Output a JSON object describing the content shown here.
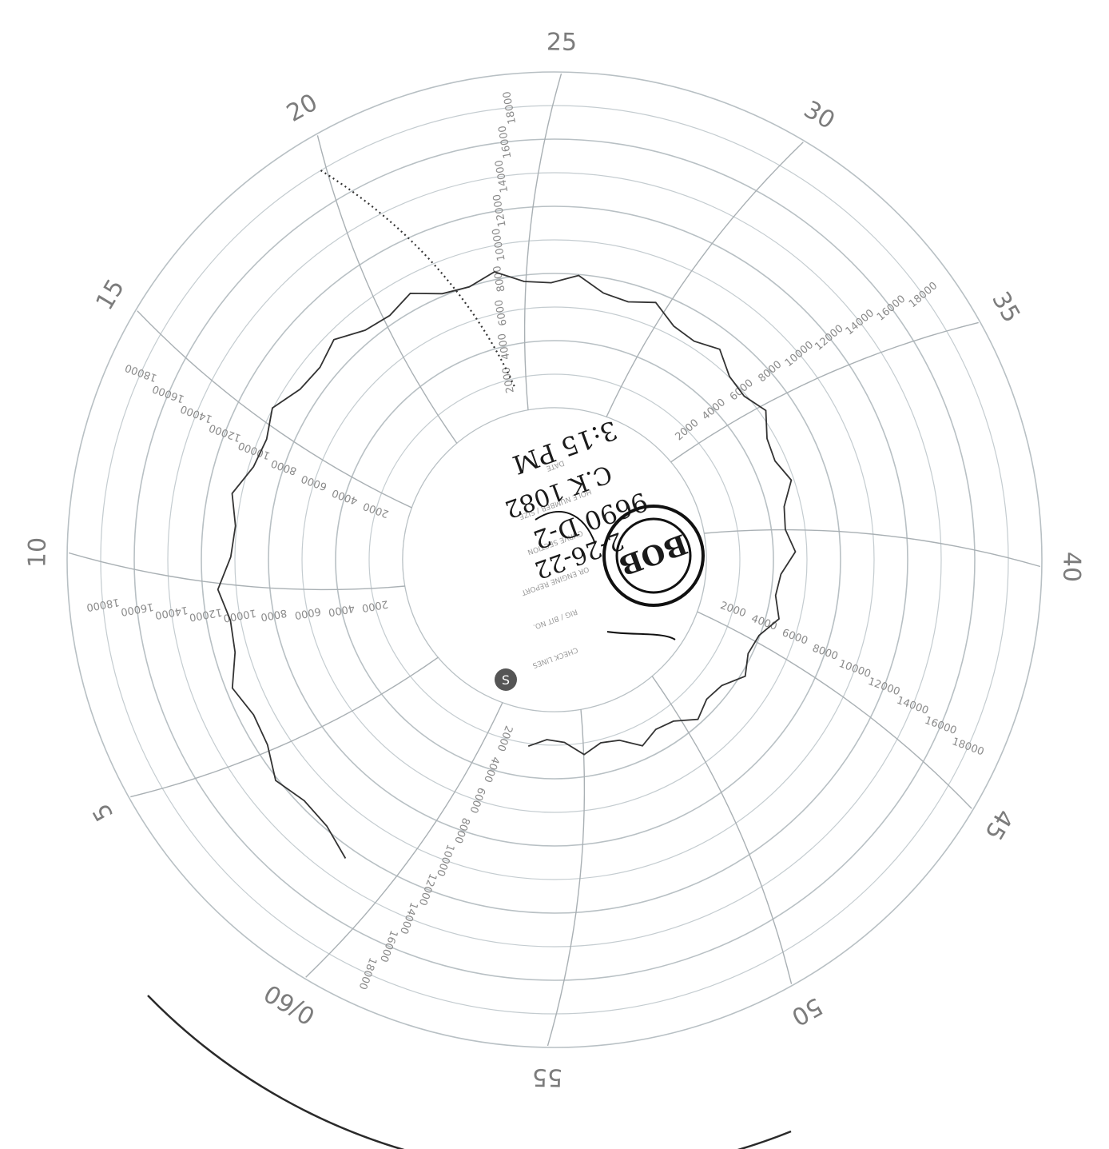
{
  "chart_data": {
    "type": "polar recorder chart",
    "minute_marks": [
      "0/60",
      "5",
      "10",
      "15",
      "20",
      "25",
      "30",
      "35",
      "40",
      "45",
      "50",
      "55"
    ],
    "depth_scale": [
      2000,
      4000,
      6000,
      8000,
      10000,
      12000,
      14000,
      16000,
      18000
    ],
    "logo_letter": "S",
    "center_print_lines": [
      "DATE",
      "HOLE NUMBER / SIZE",
      "CURVE SECTION",
      "OR ENGINE REPORT",
      "RIG / BIT NO.",
      "CHECK LINES"
    ],
    "handwriting": {
      "line1": "2-26-22",
      "line2": "9690 D-2",
      "line3": "C.K 1082",
      "line4": "3:15 PM",
      "circled": "BOB"
    },
    "traces": [
      {
        "name": "",
        "start_minute": 21.5,
        "end_minute": 24.5,
        "depth_start": 18000,
        "depth_end": 1500
      },
      {
        "name": "",
        "start_minute": 2.5,
        "end_minute": 58.0,
        "depth_start": 12000,
        "depth_end": 1500
      }
    ]
  }
}
